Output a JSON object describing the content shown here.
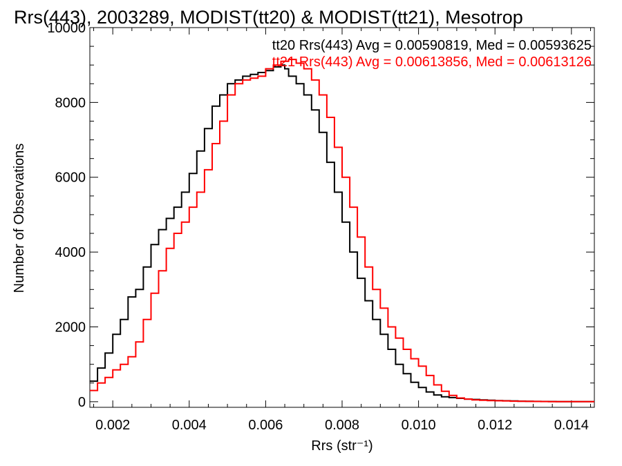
{
  "chart_data": {
    "type": "line",
    "title": "Rrs(443), 2003289, MODIST(tt20) & MODIST(tt21), Mesotrop",
    "xlabel": "Rrs (str⁻¹)",
    "ylabel": "Number of Observations",
    "xlim": [
      0.0014,
      0.0146
    ],
    "ylim": [
      -150,
      10000
    ],
    "xticks": [
      0.002,
      0.004,
      0.006,
      0.008,
      0.01,
      0.012,
      0.014
    ],
    "xtick_labels": [
      "0.002",
      "0.004",
      "0.006",
      "0.008",
      "0.010",
      "0.012",
      "0.014"
    ],
    "yticks": [
      0,
      2000,
      4000,
      6000,
      8000,
      10000
    ],
    "ytick_labels": [
      "0",
      "2000",
      "4000",
      "6000",
      "8000",
      "10000"
    ],
    "grid": false,
    "annotations": [
      {
        "text": "tt20 Rrs(443) Avg = 0.00590819, Med = 0.00593625",
        "color": "#000000"
      },
      {
        "text": "tt21 Rrs(443) Avg = 0.00613856, Med = 0.00613126",
        "color": "#ff0000"
      }
    ],
    "series": [
      {
        "color": "#000000",
        "x": [
          0.0014,
          0.0016,
          0.0018,
          0.002,
          0.0022,
          0.0024,
          0.0026,
          0.0028,
          0.003,
          0.0032,
          0.0034,
          0.0036,
          0.0038,
          0.004,
          0.0042,
          0.0044,
          0.0046,
          0.0048,
          0.005,
          0.0052,
          0.0054,
          0.0056,
          0.0058,
          0.006,
          0.0062,
          0.0064,
          0.0065,
          0.0066,
          0.0068,
          0.007,
          0.0072,
          0.0074,
          0.0076,
          0.0078,
          0.008,
          0.0082,
          0.0084,
          0.0086,
          0.0088,
          0.009,
          0.0092,
          0.0094,
          0.0096,
          0.0098,
          0.01,
          0.0102,
          0.0104,
          0.0106,
          0.0108,
          0.011,
          0.0112,
          0.0114,
          0.0116,
          0.0118,
          0.012,
          0.0122,
          0.0124,
          0.0126,
          0.0128,
          0.013,
          0.0132,
          0.0134,
          0.0136,
          0.0138,
          0.014,
          0.0142,
          0.0144,
          0.0146
        ],
        "y": [
          550,
          900,
          1300,
          1800,
          2200,
          2800,
          3000,
          3600,
          4200,
          4600,
          4900,
          5200,
          5600,
          6100,
          6700,
          7300,
          7900,
          8200,
          8500,
          8600,
          8700,
          8750,
          8800,
          8850,
          8950,
          9000,
          8900,
          8700,
          8500,
          8200,
          7800,
          7200,
          6400,
          5600,
          4800,
          4000,
          3300,
          2700,
          2200,
          1800,
          1400,
          1000,
          750,
          520,
          380,
          260,
          180,
          130,
          110,
          90,
          70,
          60,
          50,
          40,
          30,
          25,
          20,
          15,
          10,
          8,
          6,
          5,
          4,
          3,
          3,
          2,
          2,
          2
        ]
      },
      {
        "color": "#ff0000",
        "x": [
          0.0014,
          0.0016,
          0.0018,
          0.002,
          0.0022,
          0.0024,
          0.0026,
          0.0028,
          0.003,
          0.0032,
          0.0034,
          0.0036,
          0.0038,
          0.004,
          0.0042,
          0.0044,
          0.0046,
          0.0048,
          0.005,
          0.0052,
          0.0054,
          0.0056,
          0.0058,
          0.006,
          0.0062,
          0.0064,
          0.0066,
          0.0068,
          0.007,
          0.0072,
          0.0074,
          0.0076,
          0.0078,
          0.008,
          0.0082,
          0.0084,
          0.0086,
          0.0088,
          0.009,
          0.0092,
          0.0094,
          0.0096,
          0.0098,
          0.01,
          0.0102,
          0.0104,
          0.0106,
          0.0108,
          0.011,
          0.0112,
          0.0114,
          0.0116,
          0.0118,
          0.012,
          0.0122,
          0.0124,
          0.0126,
          0.0128,
          0.013,
          0.0132,
          0.0134,
          0.0136,
          0.0138,
          0.014,
          0.0142,
          0.0144,
          0.0146
        ],
        "y": [
          300,
          500,
          650,
          850,
          1000,
          1200,
          1600,
          2200,
          2900,
          3500,
          4100,
          4500,
          4800,
          5200,
          5600,
          6200,
          6900,
          7500,
          8200,
          8500,
          8600,
          8650,
          8700,
          8900,
          9000,
          9100,
          9150,
          9050,
          8900,
          8600,
          8200,
          7600,
          6800,
          6000,
          5200,
          4400,
          3600,
          3000,
          2500,
          2000,
          1700,
          1400,
          1150,
          950,
          700,
          450,
          280,
          170,
          100,
          70,
          50,
          40,
          30,
          25,
          20,
          15,
          10,
          8,
          6,
          5,
          4,
          3,
          3,
          2,
          2,
          2,
          2
        ]
      }
    ]
  }
}
